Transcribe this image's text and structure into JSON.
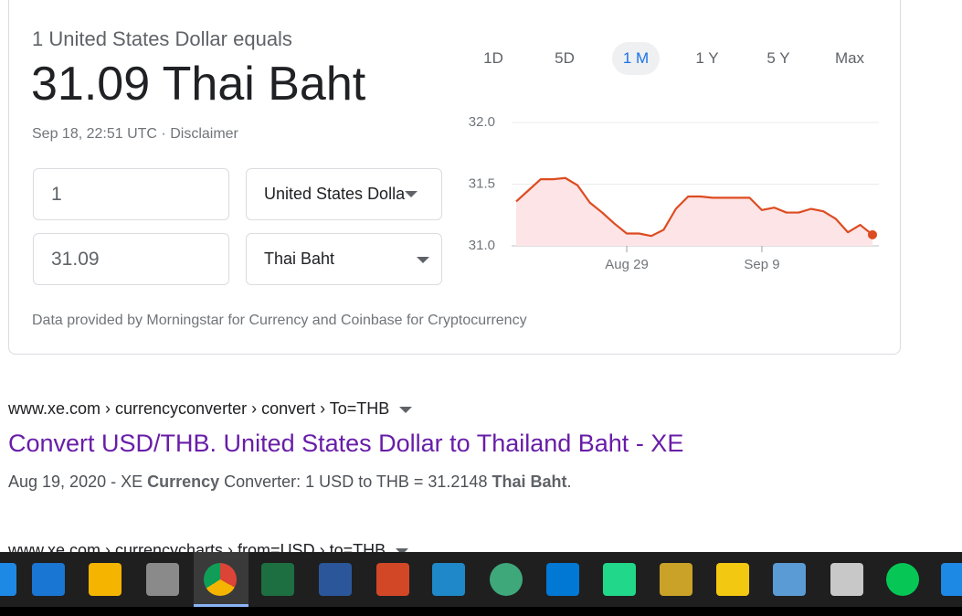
{
  "converter": {
    "heading": "1 United States Dollar equals",
    "rate": "31.09 Thai Baht",
    "timestamp": "Sep 18, 22:51 UTC",
    "separator": "·",
    "disclaimer": "Disclaimer",
    "from_amount": "1",
    "from_currency": "United States Dolla",
    "to_amount": "31.09",
    "to_currency": "Thai Baht",
    "footer": "Data provided by Morningstar for Currency and Coinbase for Cryptocurrency"
  },
  "range_buttons": [
    "1D",
    "5D",
    "1 M",
    "1 Y",
    "5 Y",
    "Max"
  ],
  "selected_range": 2,
  "chart_data": {
    "type": "line",
    "categories": [
      null,
      null,
      null,
      null,
      null,
      null,
      null,
      null,
      null,
      "Aug 29",
      null,
      null,
      null,
      null,
      null,
      null,
      null,
      null,
      null,
      null,
      "Sep 9",
      null,
      null,
      null,
      null,
      null,
      null,
      null,
      null,
      null
    ],
    "values": [
      31.36,
      31.45,
      31.54,
      31.54,
      31.55,
      31.49,
      31.35,
      31.27,
      31.18,
      31.1,
      31.1,
      31.08,
      31.13,
      31.3,
      31.4,
      31.4,
      31.39,
      31.39,
      31.39,
      31.39,
      31.29,
      31.31,
      31.27,
      31.27,
      31.3,
      31.28,
      31.22,
      31.11,
      31.17,
      31.09
    ],
    "color": "#dd4b20",
    "area_color": "#fde4e6",
    "ylim": [
      31.0,
      32.0
    ],
    "yticks": [
      {
        "value": 31.0,
        "label": "31.0"
      },
      {
        "value": 31.5,
        "label": "31.5"
      },
      {
        "value": 32.0,
        "label": "32.0"
      }
    ],
    "grid": true
  },
  "results": [
    {
      "breadcrumb": "www.xe.com › currencyconverter › convert › To=THB",
      "title": "Convert USD/THB. United States Dollar to Thailand Baht - XE",
      "snippet": [
        "Aug 19, 2020 - XE ",
        "Currency",
        " Converter: 1 USD to THB = 31.2148 ",
        "Thai Baht",
        "."
      ]
    },
    {
      "breadcrumb": "www.xe.com › currencycharts › from=USD › to=THB"
    }
  ]
}
